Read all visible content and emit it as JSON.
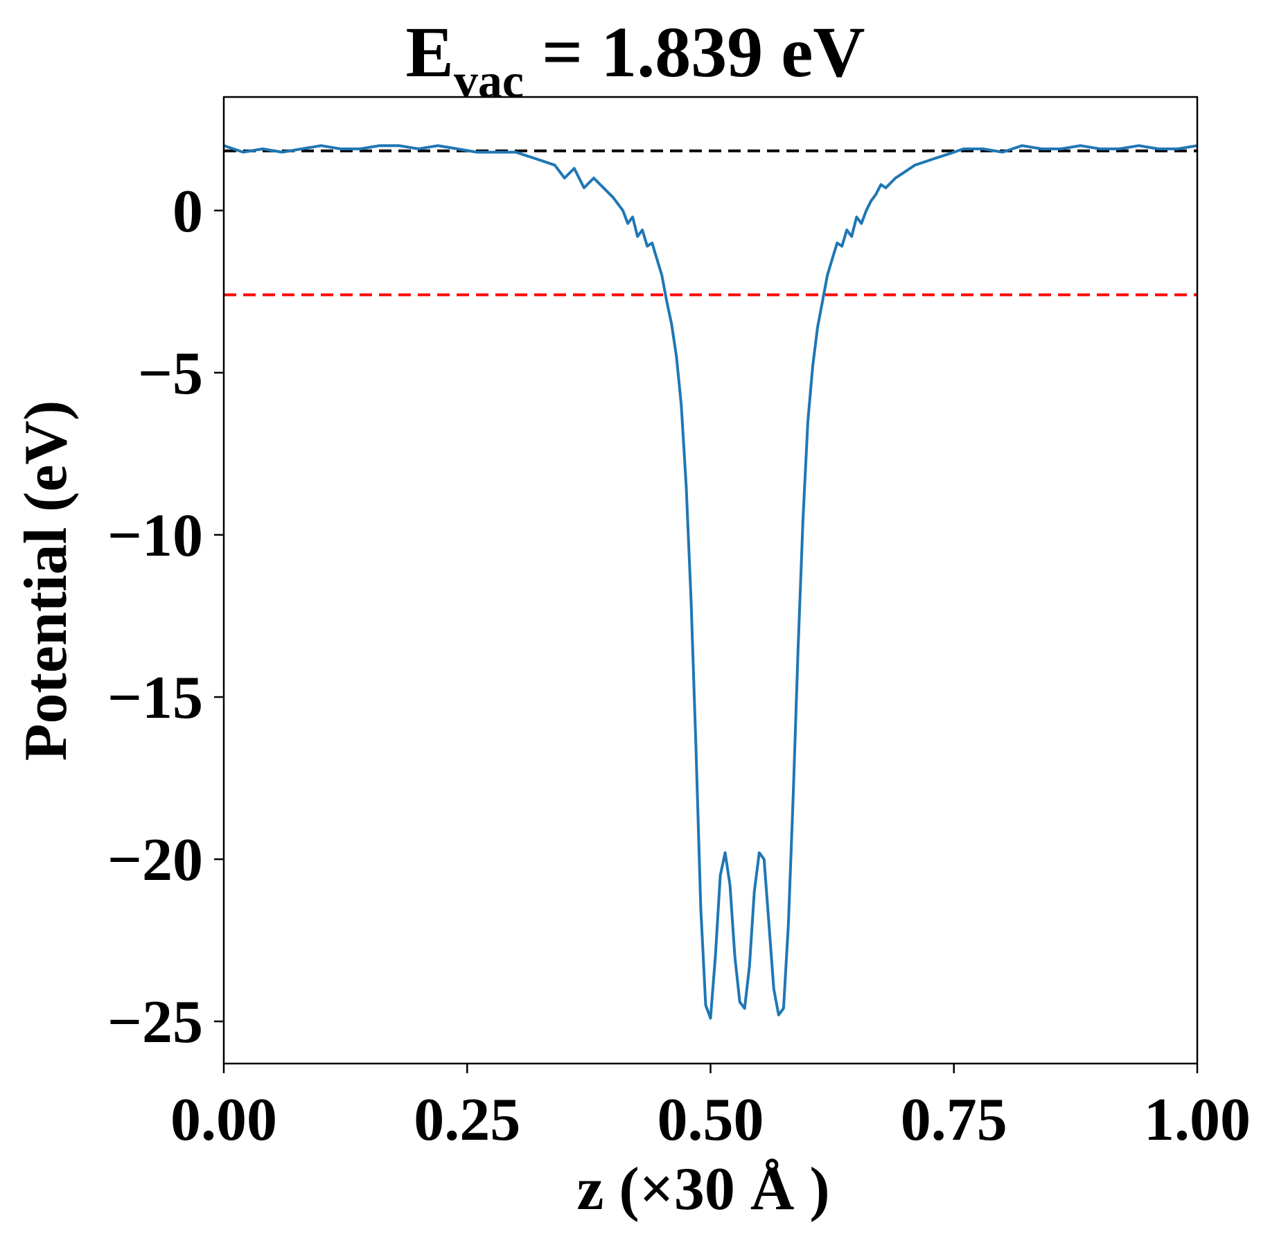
{
  "chart_data": {
    "type": "line",
    "title": "E",
    "title_subscript": "vac",
    "title_value": " = 1.839 eV",
    "xlabel": "z (×30 Å )",
    "ylabel": "Potential (eV)",
    "xlim": [
      0.0,
      1.0
    ],
    "ylim": [
      -26.3,
      3.5
    ],
    "xticks": [
      0.0,
      0.25,
      0.5,
      0.75,
      1.0
    ],
    "xtick_labels": [
      "0.00",
      "0.25",
      "0.50",
      "0.75",
      "1.00"
    ],
    "yticks": [
      0,
      -5,
      -10,
      -15,
      -20,
      -25
    ],
    "ytick_labels": [
      "0",
      "−5",
      "−10",
      "−15",
      "−20",
      "−25"
    ],
    "grid": false,
    "colors": {
      "potential": "#1f77b4",
      "vacuum": "#000000",
      "fermi": "#ff0000"
    },
    "reference_lines": [
      {
        "y": 1.839,
        "style": "dashed",
        "color": "#000000"
      },
      {
        "y": -2.6,
        "style": "dashed",
        "color": "#ff0000"
      }
    ],
    "series": [
      {
        "x": [
          0.0,
          0.02,
          0.04,
          0.06,
          0.08,
          0.1,
          0.12,
          0.14,
          0.16,
          0.18,
          0.2,
          0.22,
          0.24,
          0.26,
          0.28,
          0.3,
          0.32,
          0.34,
          0.35,
          0.36,
          0.37,
          0.38,
          0.39,
          0.4,
          0.41,
          0.415,
          0.42,
          0.425,
          0.43,
          0.435,
          0.44,
          0.445,
          0.45,
          0.455,
          0.46,
          0.465,
          0.47,
          0.475,
          0.48,
          0.485,
          0.49,
          0.495,
          0.5,
          0.505,
          0.51,
          0.515,
          0.52,
          0.525,
          0.53,
          0.535,
          0.54,
          0.545,
          0.55,
          0.555,
          0.56,
          0.565,
          0.57,
          0.575,
          0.58,
          0.585,
          0.59,
          0.595,
          0.6,
          0.605,
          0.61,
          0.615,
          0.62,
          0.625,
          0.63,
          0.635,
          0.64,
          0.645,
          0.65,
          0.655,
          0.66,
          0.665,
          0.67,
          0.675,
          0.68,
          0.69,
          0.7,
          0.71,
          0.72,
          0.73,
          0.74,
          0.75,
          0.76,
          0.78,
          0.8,
          0.82,
          0.84,
          0.86,
          0.88,
          0.9,
          0.92,
          0.94,
          0.96,
          0.98,
          1.0
        ],
        "y": [
          2.0,
          1.8,
          1.9,
          1.8,
          1.9,
          2.0,
          1.9,
          1.9,
          2.0,
          2.0,
          1.9,
          2.0,
          1.9,
          1.8,
          1.8,
          1.8,
          1.6,
          1.4,
          1.0,
          1.3,
          0.7,
          1.0,
          0.7,
          0.4,
          0.0,
          -0.4,
          -0.2,
          -0.8,
          -0.6,
          -1.1,
          -1.0,
          -1.5,
          -2.0,
          -2.8,
          -3.5,
          -4.5,
          -6.0,
          -8.5,
          -12.0,
          -16.5,
          -21.5,
          -24.5,
          -24.9,
          -23.0,
          -20.5,
          -19.8,
          -20.8,
          -23.0,
          -24.4,
          -24.6,
          -23.3,
          -21.0,
          -19.8,
          -20.0,
          -22.0,
          -24.0,
          -24.8,
          -24.6,
          -22.0,
          -18.0,
          -13.5,
          -9.5,
          -6.5,
          -4.8,
          -3.6,
          -2.8,
          -2.0,
          -1.5,
          -1.0,
          -1.1,
          -0.6,
          -0.8,
          -0.2,
          -0.4,
          0.0,
          0.3,
          0.5,
          0.8,
          0.7,
          1.0,
          1.2,
          1.4,
          1.5,
          1.6,
          1.7,
          1.8,
          1.9,
          1.9,
          1.8,
          2.0,
          1.9,
          1.9,
          2.0,
          1.9,
          1.9,
          2.0,
          1.9,
          1.9,
          2.0
        ]
      }
    ]
  }
}
